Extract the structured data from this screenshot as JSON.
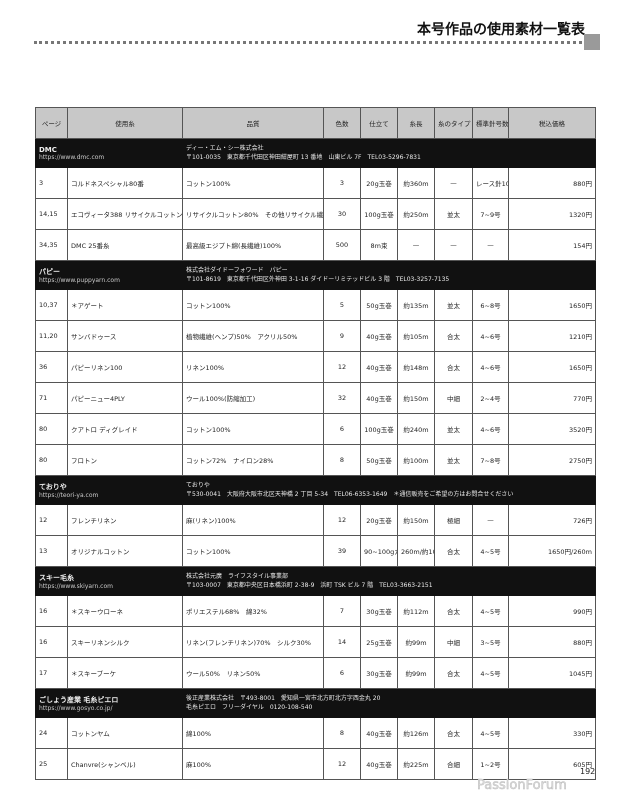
{
  "header": {
    "title": "本号作品の使用素材一覧表"
  },
  "columns": [
    "ページ",
    "使用糸",
    "品質",
    "色数",
    "仕立て",
    "糸長",
    "糸のタイプ",
    "標準針号数",
    "税込価格"
  ],
  "brands": [
    {
      "name": "DMC",
      "url": "https://www.dmc.com",
      "info1": "ディー・エム・シー株式会社",
      "info2": "〒101-0035　東京都千代田区神田紺屋町 13 番地　山東ビル 7F　TEL03-5296-7831",
      "rows": [
        [
          "3",
          "コルドネスペシャル80番",
          "コットン100%",
          "3",
          "20g玉巻",
          "約360m",
          "—",
          "レース針10号",
          "880円"
        ],
        [
          "14,15",
          "エコヴィータ388 リサイクルコットン",
          "リサイクルコットン80%　その他リサイクル繊維20%",
          "30",
          "100g玉巻",
          "約250m",
          "並太",
          "7~9号",
          "1320円"
        ],
        [
          "34,35",
          "DMC 25番糸",
          "最高級エジプト綿(長繊維)100%",
          "500",
          "8m束",
          "—",
          "—",
          "—",
          "154円"
        ]
      ]
    },
    {
      "name": "パピー",
      "url": "https://www.puppyarn.com",
      "info1": "株式会社ダイドーフォワード　パピー",
      "info2": "〒101-8619　東京都千代田区外神田 3-1-16 ダイドーリミテッドビル 3 階　TEL03-3257-7135",
      "rows": [
        [
          "10,37",
          "＊アゲート",
          "コットン100%",
          "5",
          "50g玉巻",
          "約135m",
          "並太",
          "6~8号",
          "1650円"
        ],
        [
          "11,20",
          "サンバドゥース",
          "植物繊維(ヘンプ)50%　アクリル50%",
          "9",
          "40g玉巻",
          "約105m",
          "合太",
          "4~6号",
          "1210円"
        ],
        [
          "36",
          "パピーリネン100",
          "リネン100%",
          "12",
          "40g玉巻",
          "約148m",
          "合太",
          "4~6号",
          "1650円"
        ],
        [
          "71",
          "パピーニュー4PLY",
          "ウール100%(防縮加工)",
          "32",
          "40g玉巻",
          "約150m",
          "中細",
          "2~4号",
          "770円"
        ],
        [
          "80",
          "クアトロ ディグレイド",
          "コットン100%",
          "6",
          "100g玉巻",
          "約240m",
          "並太",
          "4~6号",
          "3520円"
        ],
        [
          "80",
          "フロトン",
          "コットン72%　ナイロン28%",
          "8",
          "50g玉巻",
          "約100m",
          "並太",
          "7~8号",
          "2750円"
        ]
      ]
    },
    {
      "name": "ておりや",
      "url": "https://teori-ya.com",
      "info1": "ておりや",
      "info2": "〒530-0041　大阪府大阪市北区天神橋 2 丁目 5-34　TEL06-6353-1649　＊通信販売をご希望の方はお問合せください",
      "rows": [
        [
          "12",
          "フレンチリネン",
          "麻(リネン)100%",
          "12",
          "20g玉巻",
          "約150m",
          "極細",
          "—",
          "726円"
        ],
        [
          "13",
          "オリジナルコットン",
          "コットン100%",
          "39",
          "90~100gカセ",
          "260m/約100g",
          "合太",
          "4~5号",
          "1650円/260m"
        ]
      ]
    },
    {
      "name": "スキー毛糸",
      "url": "https://www.skiyarn.com",
      "info1": "株式会社元廣　ライフスタイル事業部",
      "info2": "〒103-0007　東京都中央区日本橋浜町 2-38-9　浜町 TSK ビル 7 階　TEL03-3663-2151",
      "rows": [
        [
          "16",
          "＊スキーウローネ",
          "ポリエステル68%　綿32%",
          "7",
          "30g玉巻",
          "約112m",
          "合太",
          "4~5号",
          "990円"
        ],
        [
          "16",
          "スキーリネンシルク",
          "リネン(フレンチリネン)70%　シルク30%",
          "14",
          "25g玉巻",
          "約99m",
          "中細",
          "3~5号",
          "880円"
        ],
        [
          "17",
          "＊スキーブーケ",
          "ウール50%　リネン50%",
          "6",
          "30g玉巻",
          "約99m",
          "合太",
          "4~5号",
          "1045円"
        ]
      ]
    },
    {
      "name": "ごしょう産業 毛糸ピエロ",
      "url": "https://www.gosyo.co.jp/",
      "info1": "後正産業株式会社　〒493-8001　愛知県一宮市北方町北方字西金丸 20",
      "info2": "毛糸ピエロ　フリーダイヤル　0120-108-540",
      "rows": [
        [
          "24",
          "コットンヤム",
          "綿100%",
          "8",
          "40g玉巻",
          "約126m",
          "合太",
          "4~5号",
          "330円"
        ],
        [
          "25",
          "Chanvre(シャンベル)",
          "麻100%",
          "12",
          "40g玉巻",
          "約225m",
          "合細",
          "1~2号",
          "605円"
        ]
      ]
    }
  ],
  "footer": {
    "page_number": "192",
    "watermark": "PassionForum.ru"
  }
}
